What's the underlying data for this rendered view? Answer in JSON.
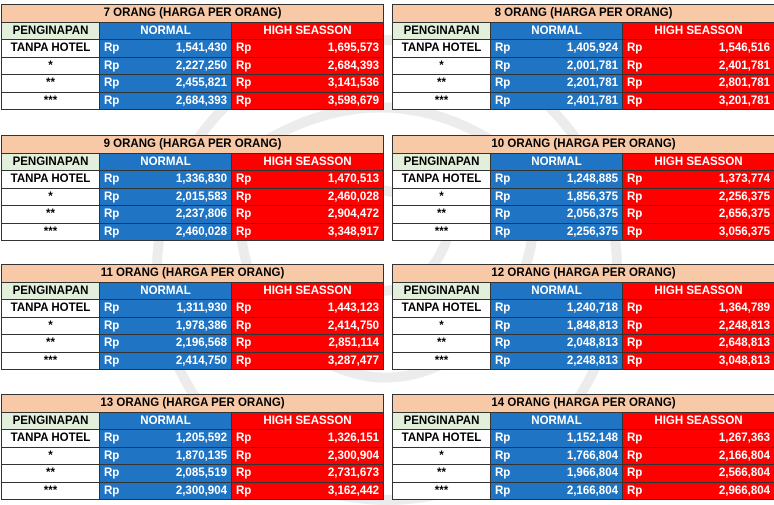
{
  "headers": {
    "lodging": "PENGINAPAN",
    "normal": "NORMAL",
    "high": "HIGH SEASSON"
  },
  "currency": "Rp",
  "tables": [
    {
      "title": "7 ORANG (HARGA PER ORANG)",
      "rows": [
        {
          "label": "TANPA HOTEL",
          "normal": "1,541,430",
          "high": "1,695,573"
        },
        {
          "label": "*",
          "normal": "2,227,250",
          "high": "2,684,393"
        },
        {
          "label": "**",
          "normal": "2,455,821",
          "high": "3,141,536"
        },
        {
          "label": "***",
          "normal": "2,684,393",
          "high": "3,598,679"
        }
      ]
    },
    {
      "title": "8 ORANG (HARGA PER ORANG)",
      "rows": [
        {
          "label": "TANPA HOTEL",
          "normal": "1,405,924",
          "high": "1,546,516"
        },
        {
          "label": "*",
          "normal": "2,001,781",
          "high": "2,401,781"
        },
        {
          "label": "**",
          "normal": "2,201,781",
          "high": "2,801,781"
        },
        {
          "label": "***",
          "normal": "2,401,781",
          "high": "3,201,781"
        }
      ]
    },
    {
      "title": "9 ORANG (HARGA PER ORANG)",
      "rows": [
        {
          "label": "TANPA HOTEL",
          "normal": "1,336,830",
          "high": "1,470,513"
        },
        {
          "label": "*",
          "normal": "2,015,583",
          "high": "2,460,028"
        },
        {
          "label": "**",
          "normal": "2,237,806",
          "high": "2,904,472"
        },
        {
          "label": "***",
          "normal": "2,460,028",
          "high": "3,348,917"
        }
      ]
    },
    {
      "title": "10 ORANG (HARGA PER ORANG)",
      "rows": [
        {
          "label": "TANPA HOTEL",
          "normal": "1,248,885",
          "high": "1,373,774"
        },
        {
          "label": "*",
          "normal": "1,856,375",
          "high": "2,256,375"
        },
        {
          "label": "**",
          "normal": "2,056,375",
          "high": "2,656,375"
        },
        {
          "label": "***",
          "normal": "2,256,375",
          "high": "3,056,375"
        }
      ]
    },
    {
      "title": "11 ORANG (HARGA PER ORANG)",
      "rows": [
        {
          "label": "TANPA HOTEL",
          "normal": "1,311,930",
          "high": "1,443,123"
        },
        {
          "label": "*",
          "normal": "1,978,386",
          "high": "2,414,750"
        },
        {
          "label": "**",
          "normal": "2,196,568",
          "high": "2,851,114"
        },
        {
          "label": "***",
          "normal": "2,414,750",
          "high": "3,287,477"
        }
      ]
    },
    {
      "title": "12 ORANG (HARGA PER ORANG)",
      "rows": [
        {
          "label": "TANPA HOTEL",
          "normal": "1,240,718",
          "high": "1,364,789"
        },
        {
          "label": "*",
          "normal": "1,848,813",
          "high": "2,248,813"
        },
        {
          "label": "**",
          "normal": "2,048,813",
          "high": "2,648,813"
        },
        {
          "label": "***",
          "normal": "2,248,813",
          "high": "3,048,813"
        }
      ]
    },
    {
      "title": "13 ORANG (HARGA PER ORANG)",
      "rows": [
        {
          "label": "TANPA HOTEL",
          "normal": "1,205,592",
          "high": "1,326,151"
        },
        {
          "label": "*",
          "normal": "1,870,135",
          "high": "2,300,904"
        },
        {
          "label": "**",
          "normal": "2,085,519",
          "high": "2,731,673"
        },
        {
          "label": "***",
          "normal": "2,300,904",
          "high": "3,162,442"
        }
      ]
    },
    {
      "title": "14 ORANG (HARGA PER ORANG)",
      "rows": [
        {
          "label": "TANPA HOTEL",
          "normal": "1,152,148",
          "high": "1,267,363"
        },
        {
          "label": "*",
          "normal": "1,766,804",
          "high": "2,166,804"
        },
        {
          "label": "**",
          "normal": "1,966,804",
          "high": "2,566,804"
        },
        {
          "label": "***",
          "normal": "2,166,804",
          "high": "2,966,804"
        }
      ]
    }
  ]
}
